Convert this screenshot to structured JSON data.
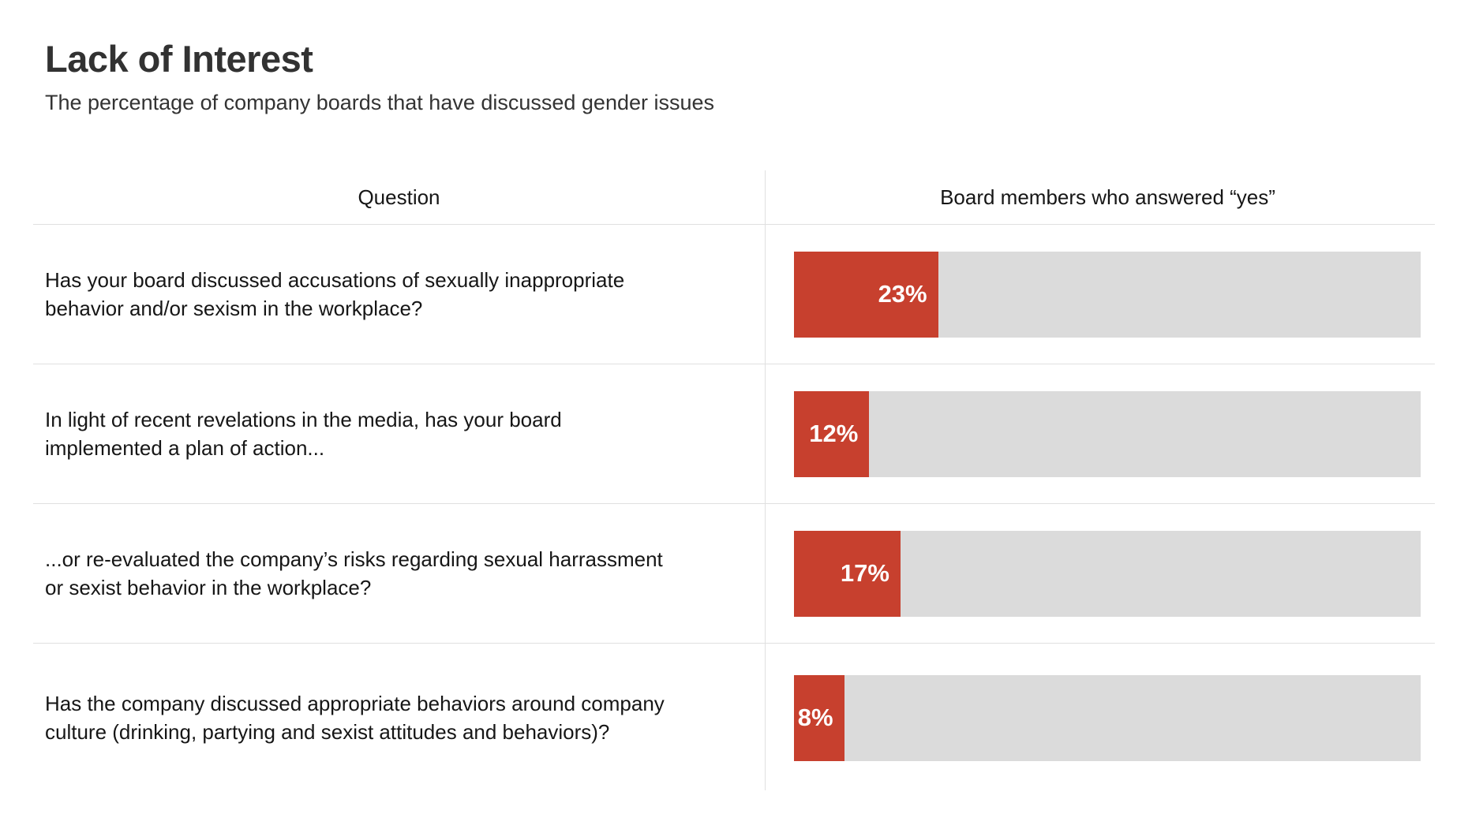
{
  "header": {
    "title": "Lack of Interest",
    "subtitle": "The percentage of company boards that have discussed gender issues"
  },
  "table": {
    "columns": {
      "question": "Question",
      "answer": "Board members who answered “yes”"
    },
    "rows": [
      {
        "question": "Has your board discussed accusations of sexually inappropriate\nbehavior and/or sexism in the workplace?",
        "pct": 23,
        "label": "23%"
      },
      {
        "question": "In light of recent revelations in the media, has your board\nimplemented a plan of action...",
        "pct": 12,
        "label": "12%"
      },
      {
        "question": "...or re-evaluated the company’s risks regarding sexual harrassment\nor sexist behavior in the workplace?",
        "pct": 17,
        "label": "17%"
      },
      {
        "question": "Has the company discussed appropriate behaviors around company\nculture (drinking, partying and sexist attitudes and behaviors)?",
        "pct": 8,
        "label": "8%"
      }
    ]
  },
  "colors": {
    "bar_fill": "#c7402e",
    "bar_track": "#dbdbdb",
    "divider": "#e0e0e0",
    "title_text": "#323232"
  },
  "chart_data": {
    "type": "bar",
    "orientation": "horizontal",
    "title": "Lack of Interest",
    "subtitle": "The percentage of company boards that have discussed gender issues",
    "column_headers": [
      "Question",
      "Board members who answered “yes”"
    ],
    "categories": [
      "Has your board discussed accusations of sexually inappropriate behavior and/or sexism in the workplace?",
      "In light of recent revelations in the media, has your board implemented a plan of action...",
      "...or re-evaluated the company’s risks regarding sexual harrassment or sexist behavior in the workplace?",
      "Has the company discussed appropriate behaviors around company culture (drinking, partying and sexist attitudes and behaviors)?"
    ],
    "values": [
      23,
      12,
      17,
      8
    ],
    "value_suffix": "%",
    "xlim": [
      0,
      100
    ],
    "grid": false,
    "legend": false,
    "data_labels": "inside-bar-right"
  }
}
